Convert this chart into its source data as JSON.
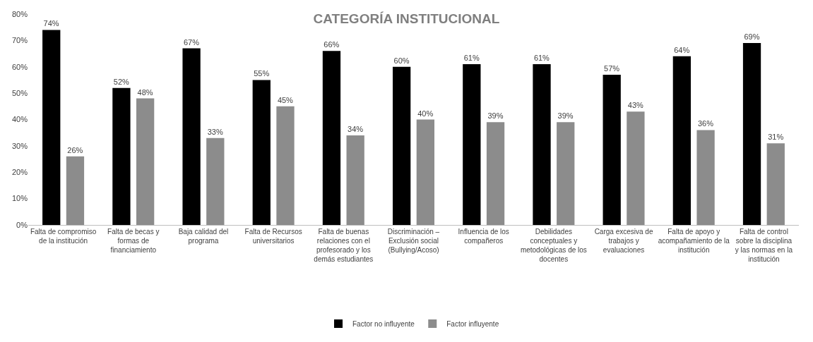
{
  "chart_data": {
    "type": "bar",
    "title": "CATEGORÍA INSTITUCIONAL",
    "categories": [
      "Falta de compromiso de la institución",
      "Falta de becas y formas de financiamiento",
      "Baja calidad del programa",
      "Falta de Recursos universitarios",
      "Falta de buenas relaciones con el profesorado y los demás estudiantes",
      "Discriminación – Exclusión social (Bullying/Acoso)",
      "Influencia de los compañeros",
      "Debilidades conceptuales y metodológicas de los docentes",
      "Carga excesiva de trabajos y evaluaciones",
      "Falta de apoyo y acompañamiento de la institución",
      "Falta de control sobre la disciplina y las normas en la institución"
    ],
    "series": [
      {
        "name": "Factor no influyente",
        "color": "#000000",
        "values": [
          74,
          52,
          67,
          55,
          66,
          60,
          61,
          61,
          57,
          64,
          69
        ],
        "value_labels": [
          "74%",
          "52%",
          "67%",
          "55%",
          "66%",
          "60%",
          "61%",
          "61%",
          "57%",
          "64%",
          "69%"
        ]
      },
      {
        "name": "Factor influyente",
        "color": "#8c8c8c",
        "values": [
          26,
          48,
          33,
          45,
          34,
          40,
          39,
          39,
          43,
          36,
          31
        ],
        "value_labels": [
          "26%",
          "48%",
          "33%",
          "45%",
          "34%",
          "40%",
          "39%",
          "39%",
          "43%",
          "36%",
          "31%"
        ]
      }
    ],
    "ylim": [
      0,
      80
    ],
    "yticks": [
      {
        "value": 0,
        "label": "0%"
      },
      {
        "value": 10,
        "label": "10%"
      },
      {
        "value": 20,
        "label": "20%"
      },
      {
        "value": 30,
        "label": "30%"
      },
      {
        "value": 40,
        "label": "40%"
      },
      {
        "value": 50,
        "label": "50%"
      },
      {
        "value": 60,
        "label": "60%"
      },
      {
        "value": 70,
        "label": "70%"
      },
      {
        "value": 80,
        "label": "80%"
      }
    ],
    "grid": false,
    "legend": "bottom"
  }
}
